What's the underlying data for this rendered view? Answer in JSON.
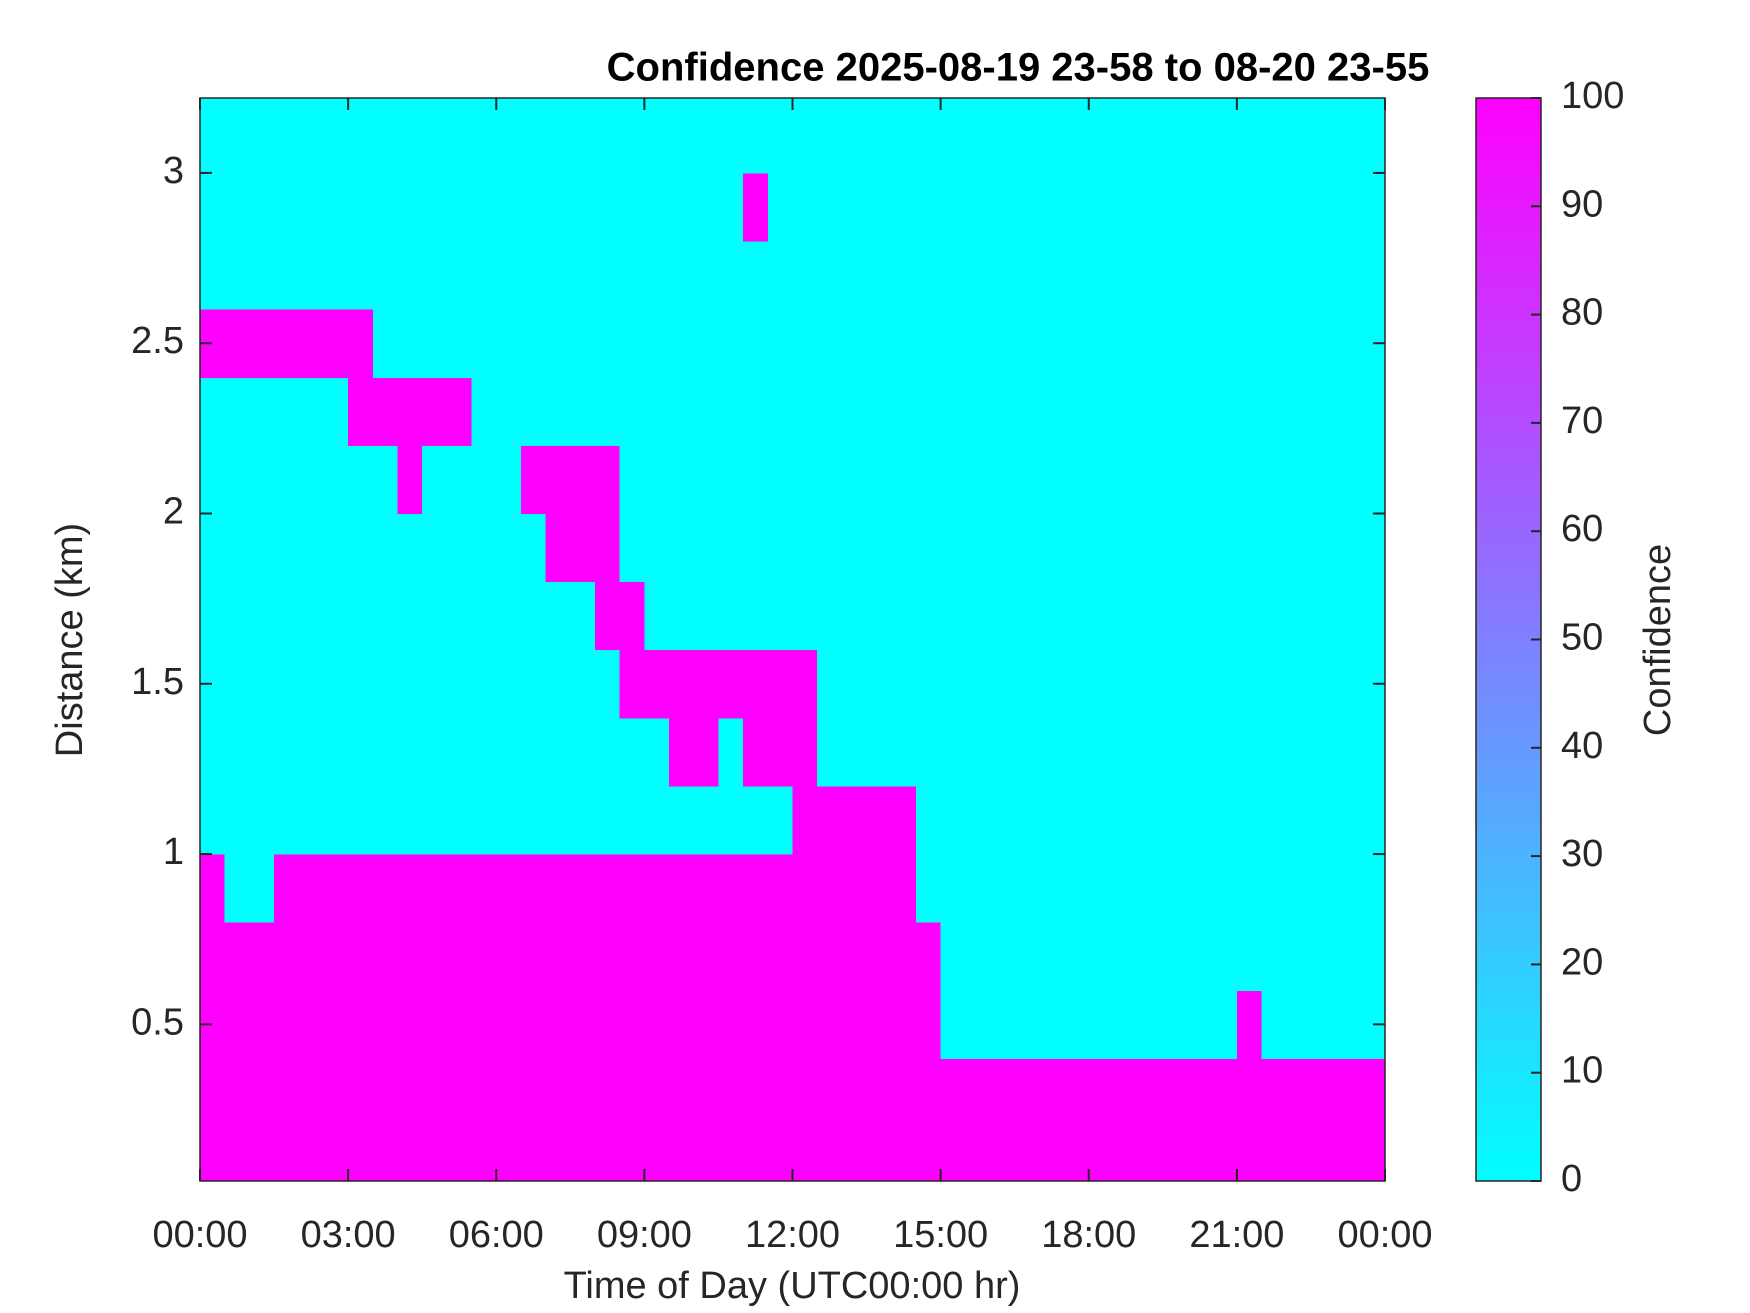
{
  "chart_data": {
    "type": "heatmap",
    "title": "Confidence 2025-08-19 23-58 to 08-20 23-55",
    "xlabel": "Time of Day (UTC00:00 hr)",
    "ylabel": "Distance (km)",
    "colorbar_label": "Confidence",
    "colormap": [
      "#00ffff",
      "#ff00ff"
    ],
    "clim": [
      0,
      100
    ],
    "cticks": [
      0,
      10,
      20,
      30,
      40,
      50,
      60,
      70,
      80,
      90,
      100
    ],
    "xlim": [
      0,
      24
    ],
    "xticks": [
      {
        "value": 0,
        "label": "00:00"
      },
      {
        "value": 3,
        "label": "03:00"
      },
      {
        "value": 6,
        "label": "06:00"
      },
      {
        "value": 9,
        "label": "09:00"
      },
      {
        "value": 12,
        "label": "12:00"
      },
      {
        "value": 15,
        "label": "15:00"
      },
      {
        "value": 18,
        "label": "18:00"
      },
      {
        "value": 21,
        "label": "21:00"
      },
      {
        "value": 24,
        "label": "00:00"
      }
    ],
    "ylim": [
      0.04,
      3.22
    ],
    "yticks": [
      0.5,
      1,
      1.5,
      2,
      2.5,
      3
    ],
    "x_bins": [
      0,
      0.5,
      1,
      1.5,
      2,
      2.5,
      3,
      3.5,
      4,
      4.5,
      5,
      5.5,
      6,
      6.5,
      7,
      7.5,
      8,
      8.5,
      9,
      9.5,
      10,
      10.5,
      11,
      11.5,
      12,
      12.5,
      13,
      13.5,
      14,
      14.5,
      15,
      15.5,
      16,
      16.5,
      17,
      17.5,
      18,
      18.5,
      19,
      19.5,
      20,
      20.5,
      21,
      21.5,
      22,
      22.5,
      23,
      23.5,
      24
    ],
    "y_bins": [
      0.04,
      0.2,
      0.4,
      0.6,
      0.8,
      1.0,
      1.2,
      1.4,
      1.6,
      1.8,
      2.0,
      2.2,
      2.4,
      2.6,
      2.8,
      3.0,
      3.22
    ],
    "values": [
      [
        100,
        100,
        100,
        100,
        100,
        100,
        100,
        100,
        100,
        100,
        100,
        100,
        100,
        100,
        100,
        100,
        100,
        100,
        100,
        100,
        100,
        100,
        100,
        100,
        100,
        100,
        100,
        100,
        100,
        100,
        100,
        100,
        100,
        100,
        100,
        100,
        100,
        100,
        100,
        100,
        100,
        100,
        100,
        100,
        100,
        100,
        100,
        100
      ],
      [
        100,
        100,
        100,
        100,
        100,
        100,
        100,
        100,
        100,
        100,
        100,
        100,
        100,
        100,
        100,
        100,
        100,
        100,
        100,
        100,
        100,
        100,
        100,
        100,
        100,
        100,
        100,
        100,
        100,
        100,
        100,
        100,
        100,
        100,
        100,
        100,
        100,
        100,
        100,
        100,
        100,
        100,
        100,
        100,
        100,
        100,
        100,
        100
      ],
      [
        100,
        100,
        100,
        100,
        100,
        100,
        100,
        100,
        100,
        100,
        100,
        100,
        100,
        100,
        100,
        100,
        100,
        100,
        100,
        100,
        100,
        100,
        100,
        100,
        100,
        100,
        100,
        100,
        100,
        100,
        0,
        0,
        0,
        0,
        0,
        0,
        0,
        0,
        0,
        0,
        0,
        0,
        100,
        0,
        0,
        0,
        0,
        0
      ],
      [
        100,
        100,
        100,
        100,
        100,
        100,
        100,
        100,
        100,
        100,
        100,
        100,
        100,
        100,
        100,
        100,
        100,
        100,
        100,
        100,
        100,
        100,
        100,
        100,
        100,
        100,
        100,
        100,
        100,
        100,
        0,
        0,
        0,
        0,
        0,
        0,
        0,
        0,
        0,
        0,
        0,
        0,
        0,
        0,
        0,
        0,
        0,
        0
      ],
      [
        100,
        0,
        0,
        100,
        100,
        100,
        100,
        100,
        100,
        100,
        100,
        100,
        100,
        100,
        100,
        100,
        100,
        100,
        100,
        100,
        100,
        100,
        100,
        100,
        100,
        100,
        100,
        100,
        100,
        0,
        0,
        0,
        0,
        0,
        0,
        0,
        0,
        0,
        0,
        0,
        0,
        0,
        0,
        0,
        0,
        0,
        0,
        0
      ],
      [
        0,
        0,
        0,
        0,
        0,
        0,
        0,
        0,
        0,
        0,
        0,
        0,
        0,
        0,
        0,
        0,
        0,
        0,
        0,
        0,
        0,
        0,
        0,
        0,
        100,
        100,
        100,
        100,
        100,
        0,
        0,
        0,
        0,
        0,
        0,
        0,
        0,
        0,
        0,
        0,
        0,
        0,
        0,
        0,
        0,
        0,
        0,
        0
      ],
      [
        0,
        0,
        0,
        0,
        0,
        0,
        0,
        0,
        0,
        0,
        0,
        0,
        0,
        0,
        0,
        0,
        0,
        0,
        0,
        100,
        100,
        0,
        100,
        100,
        100,
        0,
        0,
        0,
        0,
        0,
        0,
        0,
        0,
        0,
        0,
        0,
        0,
        0,
        0,
        0,
        0,
        0,
        0,
        0,
        0,
        0,
        0,
        0
      ],
      [
        0,
        0,
        0,
        0,
        0,
        0,
        0,
        0,
        0,
        0,
        0,
        0,
        0,
        0,
        0,
        0,
        0,
        100,
        100,
        100,
        100,
        100,
        100,
        100,
        100,
        0,
        0,
        0,
        0,
        0,
        0,
        0,
        0,
        0,
        0,
        0,
        0,
        0,
        0,
        0,
        0,
        0,
        0,
        0,
        0,
        0,
        0,
        0
      ],
      [
        0,
        0,
        0,
        0,
        0,
        0,
        0,
        0,
        0,
        0,
        0,
        0,
        0,
        0,
        0,
        0,
        100,
        100,
        0,
        0,
        0,
        0,
        0,
        0,
        0,
        0,
        0,
        0,
        0,
        0,
        0,
        0,
        0,
        0,
        0,
        0,
        0,
        0,
        0,
        0,
        0,
        0,
        0,
        0,
        0,
        0,
        0,
        0
      ],
      [
        0,
        0,
        0,
        0,
        0,
        0,
        0,
        0,
        0,
        0,
        0,
        0,
        0,
        0,
        100,
        100,
        100,
        0,
        0,
        0,
        0,
        0,
        0,
        0,
        0,
        0,
        0,
        0,
        0,
        0,
        0,
        0,
        0,
        0,
        0,
        0,
        0,
        0,
        0,
        0,
        0,
        0,
        0,
        0,
        0,
        0,
        0,
        0
      ],
      [
        0,
        0,
        0,
        0,
        0,
        0,
        0,
        0,
        100,
        0,
        0,
        0,
        0,
        100,
        100,
        100,
        100,
        0,
        0,
        0,
        0,
        0,
        0,
        0,
        0,
        0,
        0,
        0,
        0,
        0,
        0,
        0,
        0,
        0,
        0,
        0,
        0,
        0,
        0,
        0,
        0,
        0,
        0,
        0,
        0,
        0,
        0,
        0
      ],
      [
        0,
        0,
        0,
        0,
        0,
        0,
        100,
        100,
        100,
        100,
        100,
        0,
        0,
        0,
        0,
        0,
        0,
        0,
        0,
        0,
        0,
        0,
        0,
        0,
        0,
        0,
        0,
        0,
        0,
        0,
        0,
        0,
        0,
        0,
        0,
        0,
        0,
        0,
        0,
        0,
        0,
        0,
        0,
        0,
        0,
        0,
        0,
        0
      ],
      [
        100,
        100,
        100,
        100,
        100,
        100,
        100,
        0,
        0,
        0,
        0,
        0,
        0,
        0,
        0,
        0,
        0,
        0,
        0,
        0,
        0,
        0,
        0,
        0,
        0,
        0,
        0,
        0,
        0,
        0,
        0,
        0,
        0,
        0,
        0,
        0,
        0,
        0,
        0,
        0,
        0,
        0,
        0,
        0,
        0,
        0,
        0,
        0
      ],
      [
        0,
        0,
        0,
        0,
        0,
        0,
        0,
        0,
        0,
        0,
        0,
        0,
        0,
        0,
        0,
        0,
        0,
        0,
        0,
        0,
        0,
        0,
        0,
        0,
        0,
        0,
        0,
        0,
        0,
        0,
        0,
        0,
        0,
        0,
        0,
        0,
        0,
        0,
        0,
        0,
        0,
        0,
        0,
        0,
        0,
        0,
        0,
        0
      ],
      [
        0,
        0,
        0,
        0,
        0,
        0,
        0,
        0,
        0,
        0,
        0,
        0,
        0,
        0,
        0,
        0,
        0,
        0,
        0,
        0,
        0,
        0,
        100,
        0,
        0,
        0,
        0,
        0,
        0,
        0,
        0,
        0,
        0,
        0,
        0,
        0,
        0,
        0,
        0,
        0,
        0,
        0,
        0,
        0,
        0,
        0,
        0,
        0
      ],
      [
        0,
        0,
        0,
        0,
        0,
        0,
        0,
        0,
        0,
        0,
        0,
        0,
        0,
        0,
        0,
        0,
        0,
        0,
        0,
        0,
        0,
        0,
        0,
        0,
        0,
        0,
        0,
        0,
        0,
        0,
        0,
        0,
        0,
        0,
        0,
        0,
        0,
        0,
        0,
        0,
        0,
        0,
        0,
        0,
        0,
        0,
        0,
        0
      ]
    ]
  }
}
